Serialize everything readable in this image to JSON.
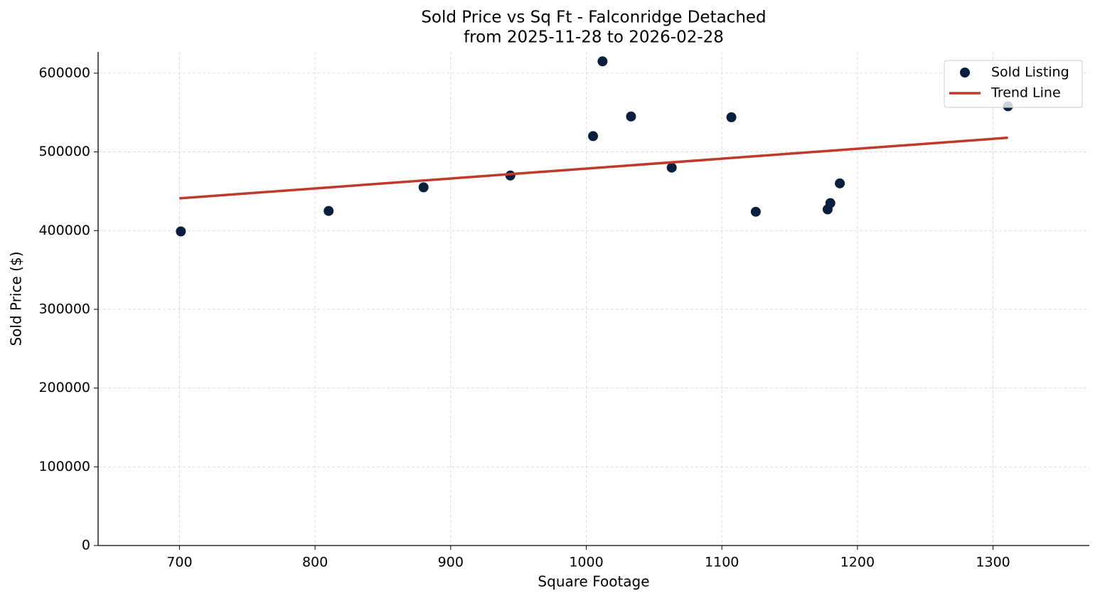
{
  "chart_data": {
    "type": "scatter",
    "title": "Sold Price vs Sq Ft - Falconridge Detached",
    "subtitle": "from 2025-11-28 to 2026-02-28",
    "x_label": "Square Footage",
    "y_label": "Sold Price ($)",
    "xlim": [
      640,
      1371
    ],
    "ylim": [
      0,
      627000
    ],
    "xticks": [
      700,
      800,
      900,
      1000,
      1100,
      1200,
      1300
    ],
    "yticks": [
      0,
      100000,
      200000,
      300000,
      400000,
      500000,
      600000
    ],
    "grid": true,
    "legend": "upper right",
    "series": [
      {
        "name": "Sold Listing",
        "type": "scatter",
        "color": "#0a1f3d",
        "x": [
          701,
          810,
          880,
          944,
          1005,
          1012,
          1033,
          1063,
          1107,
          1125,
          1178,
          1180,
          1187,
          1311
        ],
        "values": [
          399000,
          425000,
          455000,
          470000,
          520000,
          615000,
          545000,
          480000,
          544000,
          424000,
          427000,
          435000,
          460000,
          558000
        ]
      },
      {
        "name": "Trend Line",
        "type": "line",
        "color": "#c0392b",
        "x": [
          700,
          1311
        ],
        "values": [
          441000,
          518000
        ]
      }
    ]
  }
}
